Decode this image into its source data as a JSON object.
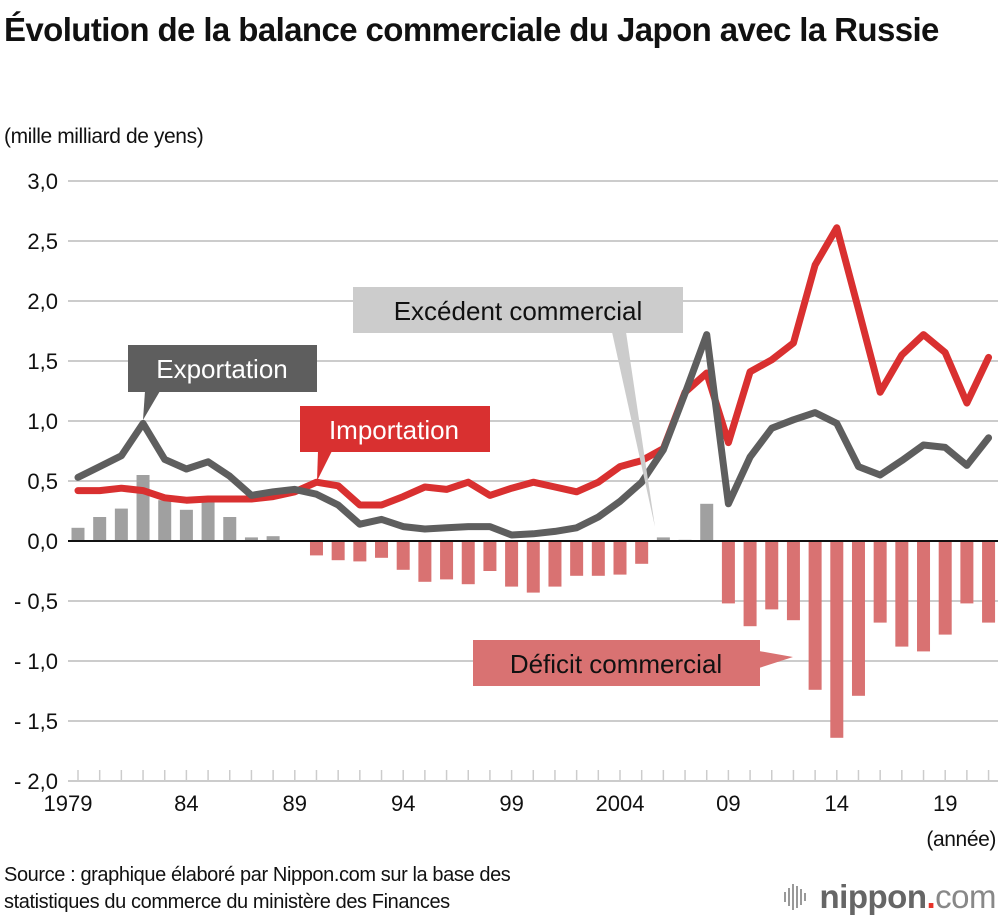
{
  "title": "Évolution de la balance commerciale du Japon avec la Russie",
  "unit_label": "(mille milliard de yens)",
  "x_unit_label": "(année)",
  "source": [
    "Source : graphique élaboré par Nippon.com sur la base des",
    "statistiques du commerce du ministère des Finances"
  ],
  "logo": {
    "part1": "nippon",
    "dot": ".",
    "part2": "com",
    "accent_color": "#e8332a"
  },
  "colors": {
    "export": "#5e5e5e",
    "import": "#d93030",
    "surplus": "#a0a0a0",
    "deficit": "#d97272",
    "surplus_callout": "#cccccc",
    "grid": "#cccccc"
  },
  "chart_data": {
    "type": "line+bar",
    "title": "Évolution de la balance commerciale du Japon avec la Russie",
    "ylabel": "(mille milliard de yens)",
    "xlabel": "(année)",
    "ylim": [
      -2.0,
      3.0
    ],
    "y_ticks": [
      3.0,
      2.5,
      2.0,
      1.5,
      1.0,
      0.5,
      0.0,
      -0.5,
      -1.0,
      -1.5,
      -2.0
    ],
    "y_tick_labels": [
      "3,0",
      "2,5",
      "2,0",
      "1,5",
      "1,0",
      "0,5",
      "0,0",
      "- 0,5",
      "- 1,0",
      "- 1,5",
      "- 2,0"
    ],
    "grid": true,
    "x": [
      1979,
      1980,
      1981,
      1982,
      1983,
      1984,
      1985,
      1986,
      1987,
      1988,
      1989,
      1990,
      1991,
      1992,
      1993,
      1994,
      1995,
      1996,
      1997,
      1998,
      1999,
      2000,
      2001,
      2002,
      2003,
      2004,
      2005,
      2006,
      2007,
      2008,
      2009,
      2010,
      2011,
      2012,
      2013,
      2014,
      2015,
      2016,
      2017,
      2018,
      2019,
      2020,
      2021
    ],
    "x_tick_labels": [
      {
        "year": 1979,
        "label": "1979"
      },
      {
        "year": 1984,
        "label": "84"
      },
      {
        "year": 1989,
        "label": "89"
      },
      {
        "year": 1994,
        "label": "94"
      },
      {
        "year": 1999,
        "label": "99"
      },
      {
        "year": 2004,
        "label": "2004"
      },
      {
        "year": 2009,
        "label": "09"
      },
      {
        "year": 2014,
        "label": "14"
      },
      {
        "year": 2019,
        "label": "19"
      }
    ],
    "series": [
      {
        "name": "Exportation",
        "kind": "line",
        "values": [
          0.53,
          0.62,
          0.71,
          0.98,
          0.68,
          0.6,
          0.66,
          0.54,
          0.38,
          0.41,
          0.43,
          0.39,
          0.3,
          0.14,
          0.18,
          0.12,
          0.1,
          0.11,
          0.12,
          0.12,
          0.05,
          0.06,
          0.08,
          0.11,
          0.2,
          0.33,
          0.49,
          0.76,
          1.23,
          1.72,
          0.31,
          0.7,
          0.94,
          1.01,
          1.07,
          0.98,
          0.62,
          0.55,
          0.67,
          0.8,
          0.78,
          0.63,
          0.86
        ]
      },
      {
        "name": "Importation",
        "kind": "line",
        "values": [
          0.42,
          0.42,
          0.44,
          0.42,
          0.36,
          0.34,
          0.35,
          0.35,
          0.35,
          0.37,
          0.41,
          0.49,
          0.46,
          0.3,
          0.3,
          0.37,
          0.45,
          0.43,
          0.49,
          0.38,
          0.44,
          0.49,
          0.45,
          0.41,
          0.49,
          0.62,
          0.67,
          0.77,
          1.24,
          1.4,
          0.82,
          1.41,
          1.51,
          1.65,
          2.3,
          2.61,
          1.93,
          1.24,
          1.55,
          1.72,
          1.57,
          1.15,
          1.53
        ]
      },
      {
        "name": "Balance commerciale",
        "kind": "bar",
        "values": [
          0.11,
          0.2,
          0.27,
          0.55,
          0.34,
          0.26,
          0.33,
          0.2,
          0.03,
          0.04,
          0.0,
          -0.12,
          -0.16,
          -0.17,
          -0.14,
          -0.24,
          -0.34,
          -0.32,
          -0.36,
          -0.25,
          -0.38,
          -0.43,
          -0.38,
          -0.29,
          -0.29,
          -0.28,
          -0.19,
          0.03,
          0.01,
          0.31,
          -0.52,
          -0.71,
          -0.57,
          -0.66,
          -1.24,
          -1.64,
          -1.29,
          -0.68,
          -0.88,
          -0.92,
          -0.78,
          -0.52,
          -0.68
        ]
      }
    ],
    "annotations": [
      {
        "id": "export",
        "text": "Exportation",
        "points_to_year": 1982
      },
      {
        "id": "import",
        "text": "Importation",
        "points_to_year": 1990
      },
      {
        "id": "surplus",
        "text": "Excédent commercial",
        "points_to_year": 2006
      },
      {
        "id": "deficit",
        "text": "Déficit commercial",
        "points_to_year": 2013
      }
    ]
  }
}
